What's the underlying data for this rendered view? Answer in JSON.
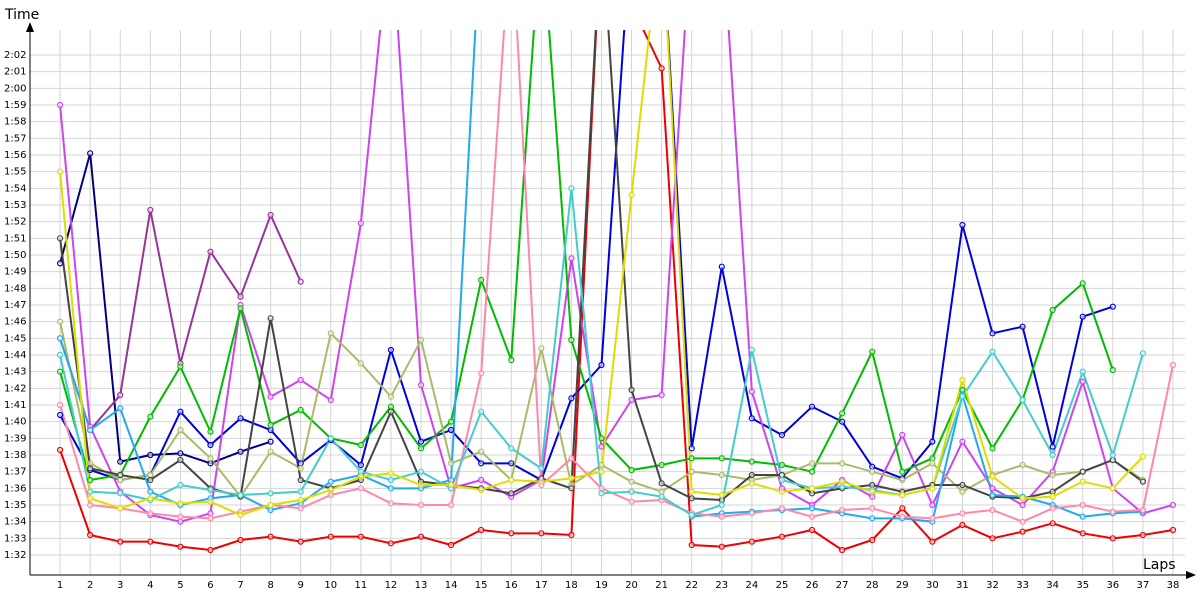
{
  "chart_data": {
    "type": "line",
    "y_label": "Time",
    "x_label": "Laps",
    "grid": true,
    "x": [
      1,
      2,
      3,
      4,
      5,
      6,
      7,
      8,
      9,
      10,
      11,
      12,
      13,
      14,
      15,
      16,
      17,
      18,
      19,
      20,
      21,
      22,
      23,
      24,
      25,
      26,
      27,
      28,
      29,
      30,
      31,
      32,
      33,
      34,
      35,
      36,
      37,
      38
    ],
    "xticks": [
      1,
      2,
      3,
      4,
      5,
      6,
      7,
      8,
      9,
      10,
      11,
      12,
      13,
      14,
      15,
      16,
      17,
      18,
      19,
      20,
      21,
      22,
      23,
      24,
      25,
      26,
      27,
      28,
      29,
      30,
      31,
      32,
      33,
      34,
      35,
      36,
      37,
      38
    ],
    "xlim": [
      0,
      38.4
    ],
    "ylim": [
      90.8,
      123.5
    ],
    "yticks": [
      {
        "value": 92,
        "label": "1:32"
      },
      {
        "value": 93,
        "label": "1:33"
      },
      {
        "value": 94,
        "label": "1:34"
      },
      {
        "value": 95,
        "label": "1:35"
      },
      {
        "value": 96,
        "label": "1:36"
      },
      {
        "value": 97,
        "label": "1:37"
      },
      {
        "value": 98,
        "label": "1:38"
      },
      {
        "value": 99,
        "label": "1:39"
      },
      {
        "value": 100,
        "label": "1:40"
      },
      {
        "value": 101,
        "label": "1:41"
      },
      {
        "value": 102,
        "label": "1:42"
      },
      {
        "value": 103,
        "label": "1:43"
      },
      {
        "value": 104,
        "label": "1:44"
      },
      {
        "value": 105,
        "label": "1:45"
      },
      {
        "value": 106,
        "label": "1:46"
      },
      {
        "value": 107,
        "label": "1:47"
      },
      {
        "value": 108,
        "label": "1:48"
      },
      {
        "value": 109,
        "label": "1:49"
      },
      {
        "value": 110,
        "label": "1:50"
      },
      {
        "value": 111,
        "label": "1:51"
      },
      {
        "value": 112,
        "label": "1:52"
      },
      {
        "value": 113,
        "label": "1:53"
      },
      {
        "value": 114,
        "label": "1:54"
      },
      {
        "value": 115,
        "label": "1:55"
      },
      {
        "value": 116,
        "label": "1:56"
      },
      {
        "value": 117,
        "label": "1:57"
      },
      {
        "value": 118,
        "label": "1:58"
      },
      {
        "value": 119,
        "label": "1:59"
      },
      {
        "value": 120,
        "label": "2:00"
      },
      {
        "value": 121,
        "label": "2:01"
      },
      {
        "value": 122,
        "label": "2:02"
      }
    ],
    "series": [
      {
        "color": "#ee0000",
        "values": [
          98.3,
          93.2,
          92.8,
          92.8,
          92.5,
          92.3,
          92.9,
          93.1,
          92.8,
          93.1,
          93.1,
          92.7,
          93.1,
          92.6,
          93.5,
          93.3,
          93.3,
          93.2,
          130,
          125,
          121.2,
          92.6,
          92.5,
          92.8,
          93.1,
          93.5,
          92.3,
          92.9,
          94.8,
          92.8,
          93.8,
          93.0,
          93.4,
          93.9,
          93.3,
          93.0,
          93.2,
          93.5
        ]
      },
      {
        "color": "#0000dd",
        "values": [
          100.4,
          97.1,
          96.5,
          96.8,
          100.6,
          98.6,
          100.2,
          99.5,
          97.5,
          98.9,
          97.4,
          104.3,
          98.8,
          99.5,
          97.5,
          97.5,
          96.5,
          101.4,
          103.4,
          130,
          130,
          98.4,
          109.3,
          100.2,
          99.2,
          100.9,
          100.0,
          97.3,
          96.6,
          98.8,
          111.8,
          105.3,
          105.7,
          98.5,
          106.3,
          106.9,
          null,
          null
        ]
      },
      {
        "color": "#000080",
        "values": [
          109.5,
          116.1,
          97.6,
          98.0,
          98.1,
          97.5,
          98.2,
          98.8,
          null,
          null,
          null,
          null,
          null,
          null,
          null,
          null,
          null,
          null,
          null,
          null,
          null,
          null,
          null,
          null,
          null,
          null,
          null,
          null,
          null,
          null,
          null,
          null,
          null,
          null,
          null,
          null,
          null,
          null
        ]
      },
      {
        "color": "#993399",
        "values": [
          105,
          99.5,
          101.6,
          112.7,
          103.5,
          110.2,
          107.5,
          112.4,
          108.4,
          null,
          null,
          null,
          null,
          null,
          null,
          null,
          null,
          null,
          null,
          null,
          null,
          null,
          null,
          null,
          null,
          null,
          null,
          null,
          null,
          null,
          null,
          null,
          null,
          null,
          null,
          null,
          null,
          null
        ]
      },
      {
        "color": "#cc44ee",
        "values": [
          119,
          99.7,
          95.8,
          94.4,
          94.0,
          94.5,
          107,
          101.5,
          102.5,
          101.3,
          111.9,
          130,
          102.2,
          96,
          96.5,
          95.5,
          96.5,
          109.8,
          98.5,
          101.3,
          101.6,
          130,
          130,
          101.8,
          96,
          95,
          96.5,
          95.5,
          99.2,
          95.0,
          98.8,
          96,
          95,
          97.0,
          102.4,
          96,
          94.5,
          95
        ]
      },
      {
        "color": "#00bb00",
        "values": [
          103,
          96.5,
          96.8,
          100.3,
          103.3,
          99.4,
          106.8,
          99.8,
          100.7,
          99.0,
          98.6,
          100.9,
          98.4,
          100.0,
          108.5,
          103.7,
          130,
          104.9,
          99.0,
          97.1,
          97.4,
          97.8,
          97.8,
          97.6,
          97.4,
          97.0,
          100.5,
          104.2,
          97.0,
          97.8,
          101.9,
          98.4,
          101.3,
          106.7,
          108.3,
          103.1,
          null,
          null
        ]
      },
      {
        "color": "#aabb66",
        "values": [
          106,
          97.5,
          96.5,
          96.8,
          99.5,
          97.8,
          95.5,
          98.2,
          97.2,
          105.3,
          103.5,
          101.5,
          104.9,
          97.5,
          98.2,
          96.5,
          104.4,
          96.2,
          97.4,
          96.4,
          95.8,
          97,
          96.8,
          96.5,
          96.8,
          97.5,
          97.5,
          97.0,
          96.5,
          97.5,
          95.8,
          96.8,
          97.4,
          96.8,
          97.0,
          97.7,
          96.5,
          null
        ]
      },
      {
        "color": "#444444",
        "values": [
          111,
          97.2,
          96.8,
          96.5,
          97.7,
          96.0,
          95.5,
          106.2,
          96.5,
          96.0,
          96.5,
          100.6,
          96.4,
          96.2,
          96.0,
          95.7,
          96.6,
          96.0,
          130,
          101.9,
          96.3,
          95.4,
          95.3,
          96.8,
          96.8,
          95.7,
          96.0,
          96.2,
          95.8,
          96.2,
          96.2,
          95.5,
          95.4,
          95.8,
          97,
          97.7,
          96.4,
          null
        ]
      },
      {
        "color": "#22aaee",
        "values": [
          105.0,
          99.5,
          100.8,
          95.8,
          95.0,
          95.4,
          95.6,
          94.7,
          95.1,
          96.4,
          96.8,
          96.0,
          96.0,
          96.5,
          130,
          null,
          null,
          null,
          null,
          null,
          null,
          94.3,
          94.5,
          94.6,
          94.7,
          94.8,
          94.5,
          94.2,
          94.2,
          94.0,
          101.6,
          95.6,
          95.5,
          95.0,
          94.3,
          94.5,
          94.6,
          null
        ]
      },
      {
        "color": "#ff88aa",
        "values": [
          101,
          95,
          94.8,
          94.5,
          94.3,
          94.2,
          94.6,
          95,
          94.8,
          95.6,
          96,
          95.1,
          95,
          95,
          102.9,
          130,
          96.2,
          97.8,
          96.0,
          95.2,
          95.3,
          94.5,
          94.3,
          94.5,
          94.8,
          94.3,
          94.7,
          94.8,
          94.3,
          94.2,
          94.5,
          94.7,
          94.0,
          94.8,
          95.0,
          94.6,
          94.7,
          103.4
        ]
      },
      {
        "color": "#44cccc",
        "values": [
          104,
          95.8,
          95.7,
          95.3,
          96.2,
          95.9,
          95.6,
          95.7,
          95.8,
          99.0,
          97.0,
          96.5,
          97.0,
          96.0,
          100.6,
          98.4,
          97.2,
          114.0,
          95.7,
          95.8,
          95.5,
          94.4,
          95.0,
          104.3,
          96.5,
          96.0,
          96.1,
          95.9,
          95.6,
          96.0,
          101.5,
          104.2,
          101.3,
          98.0,
          103.0,
          98.0,
          104.1,
          null
        ]
      },
      {
        "color": "#dddd00",
        "values": [
          115,
          95.4,
          94.8,
          95.4,
          95.1,
          95.2,
          94.4,
          95.0,
          95.3,
          95.9,
          96.7,
          96.9,
          96.2,
          96.2,
          95.9,
          96.5,
          96.4,
          96.6,
          97.0,
          113.6,
          130,
          95.8,
          95.6,
          96.3,
          95.8,
          96.0,
          96.4,
          95.8,
          95.6,
          96.0,
          102.5,
          96.7,
          95.4,
          95.5,
          96.4,
          96.0,
          97.9,
          null
        ]
      }
    ]
  }
}
